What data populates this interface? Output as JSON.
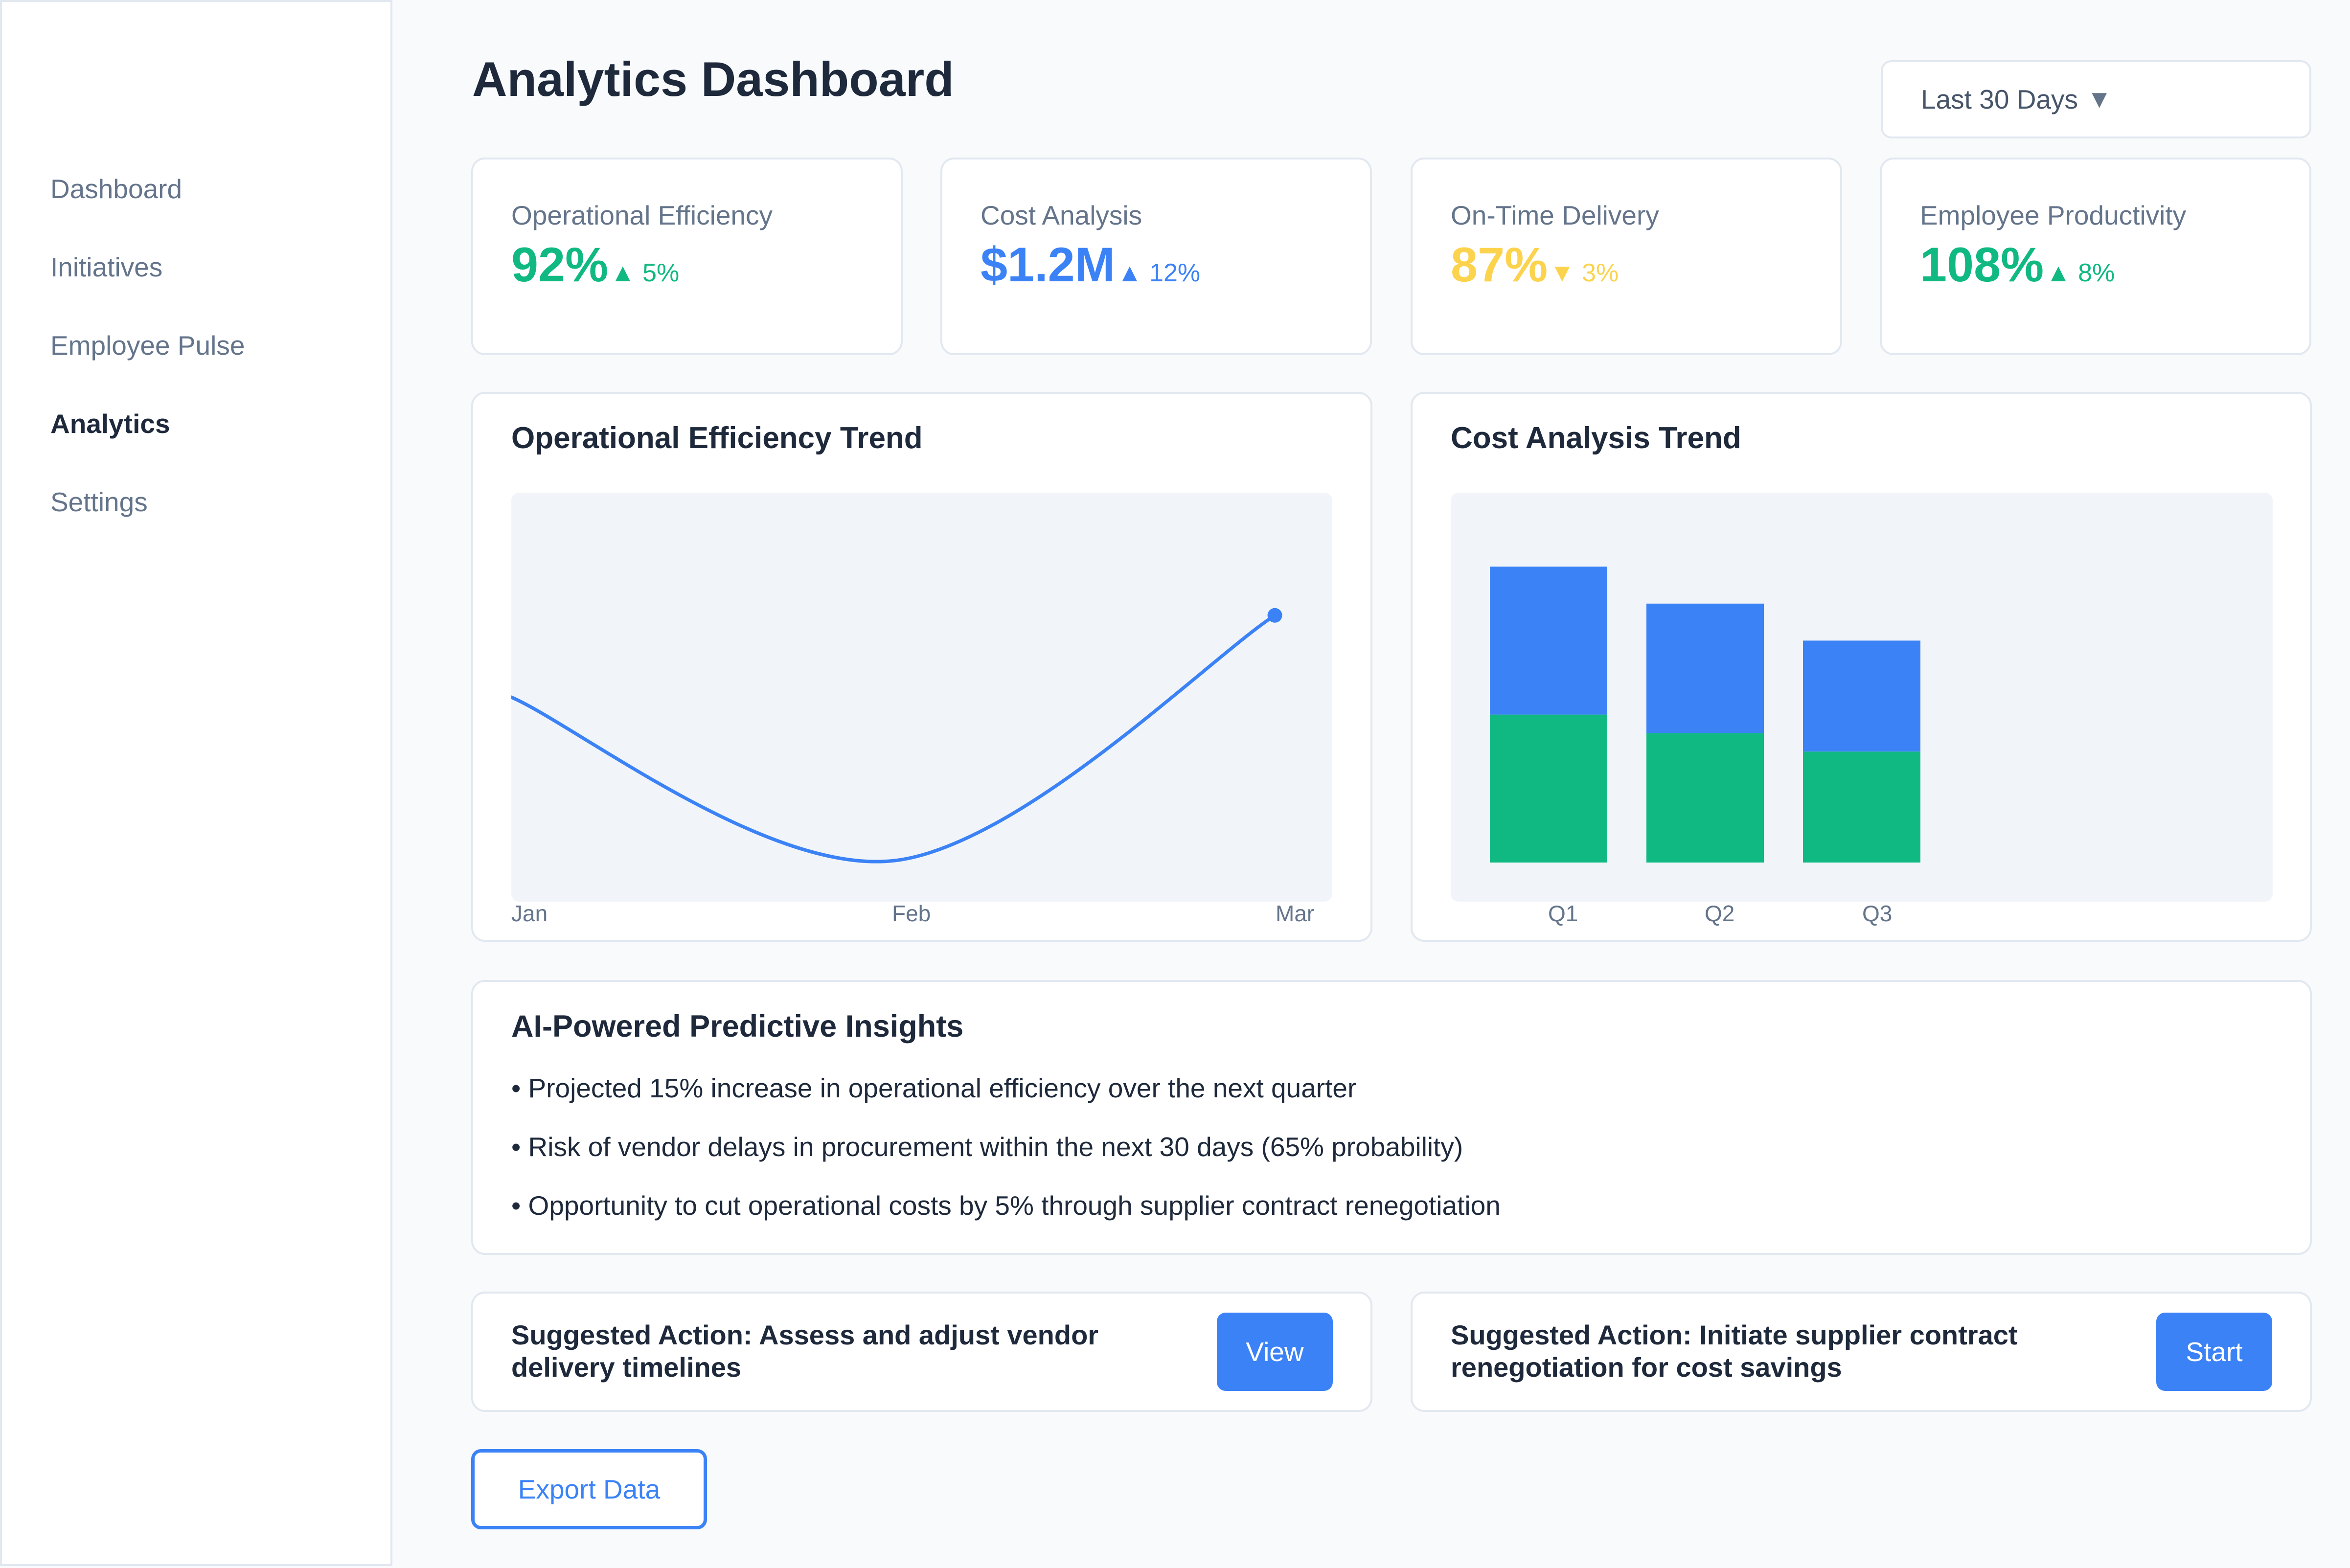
{
  "sidebar": {
    "items": [
      {
        "label": "Dashboard"
      },
      {
        "label": "Initiatives"
      },
      {
        "label": "Employee Pulse"
      },
      {
        "label": "Analytics",
        "active": true
      },
      {
        "label": "Settings"
      }
    ]
  },
  "header": {
    "title": "Analytics Dashboard",
    "date_range": "Last 30 Days",
    "date_range_caret": "▼"
  },
  "metrics": [
    {
      "label": "Operational Efficiency",
      "value": "92%",
      "arrow": "▲",
      "change": "5%",
      "color": "#10b981"
    },
    {
      "label": "Cost Analysis",
      "value": "$1.2M",
      "arrow": "▲",
      "change": "12%",
      "color": "#3b82f6"
    },
    {
      "label": "On-Time Delivery",
      "value": "87%",
      "arrow": "▼",
      "change": "3%",
      "color": "#fcd34d"
    },
    {
      "label": "Employee Productivity",
      "value": "108%",
      "arrow": "▲",
      "change": "8%",
      "color": "#10b981"
    }
  ],
  "charts": {
    "efficiency": {
      "title": "Operational Efficiency Trend"
    },
    "cost": {
      "title": "Cost Analysis Trend"
    }
  },
  "chart_data": [
    {
      "type": "line",
      "title": "Operational Efficiency Trend",
      "x": [
        "Jan",
        "Feb",
        "Mar"
      ],
      "series": [
        {
          "values": [
            5,
            1,
            7
          ],
          "color": "#3b82f6"
        }
      ],
      "ylim": [
        0,
        10
      ],
      "grid": false
    },
    {
      "type": "bar",
      "stacked": true,
      "title": "Cost Analysis Trend",
      "categories": [
        "Q1",
        "Q2",
        "Q3"
      ],
      "series": [
        {
          "values": [
            40,
            35,
            30
          ],
          "color": "#10b981"
        },
        {
          "values": [
            40,
            35,
            30
          ],
          "color": "#3b82f6"
        }
      ],
      "ylim": [
        0,
        100
      ],
      "grid": false
    }
  ],
  "insights": {
    "title": "AI-Powered Predictive Insights",
    "items": [
      "• Projected 15% increase in operational efficiency over the next quarter",
      "• Risk of vendor delays in procurement within the next 30 days (65% probability)",
      "• Opportunity to cut operational costs by 5% through supplier contract renegotiation"
    ]
  },
  "actions": [
    {
      "text": "Suggested Action: Assess and adjust vendor delivery timelines",
      "button": "View"
    },
    {
      "text": "Suggested Action: Initiate supplier contract renegotiation for cost savings",
      "button": "Start"
    }
  ],
  "export": {
    "label": "Export Data"
  },
  "colors": {
    "accent": "#3b82f6",
    "positive": "#10b981",
    "warning": "#fcd34d",
    "plot_bg": "#f1f5f9"
  }
}
